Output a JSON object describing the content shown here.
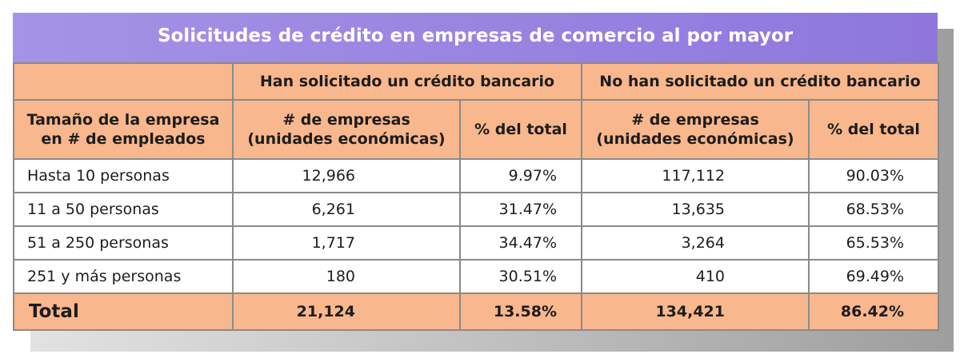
{
  "title": "Solicitudes de crédito en empresas de comercio al por mayor",
  "header": {
    "group_a": "Han solicitado un crédito bancario",
    "group_b": "No han solicitado un crédito bancario",
    "size_col_line1": "Tamaño de la empresa",
    "size_col_line2": "en # de empleados",
    "count_col_line1": "# de empresas",
    "count_col_line2": "(unidades económicas)",
    "pct_col": "% del total"
  },
  "rows": [
    {
      "size": "Hasta 10 personas",
      "a_count": "12,966",
      "a_pct": "9.97%",
      "b_count": "117,112",
      "b_pct": "90.03%"
    },
    {
      "size": "11 a 50 personas",
      "a_count": "6,261",
      "a_pct": "31.47%",
      "b_count": "13,635",
      "b_pct": "68.53%"
    },
    {
      "size": "51 a 250 personas",
      "a_count": "1,717",
      "a_pct": "34.47%",
      "b_count": "3,264",
      "b_pct": "65.53%"
    },
    {
      "size": "251 y más personas",
      "a_count": "180",
      "a_pct": "30.51%",
      "b_count": "410",
      "b_pct": "69.49%"
    }
  ],
  "total": {
    "label": "Total",
    "a_count": "21,124",
    "a_pct": "13.58%",
    "b_count": "134,421",
    "b_pct": "86.42%"
  },
  "colors": {
    "header_bg": "#f8b78d",
    "title_bg": "#9a84e0",
    "border": "#8a8a8a"
  }
}
